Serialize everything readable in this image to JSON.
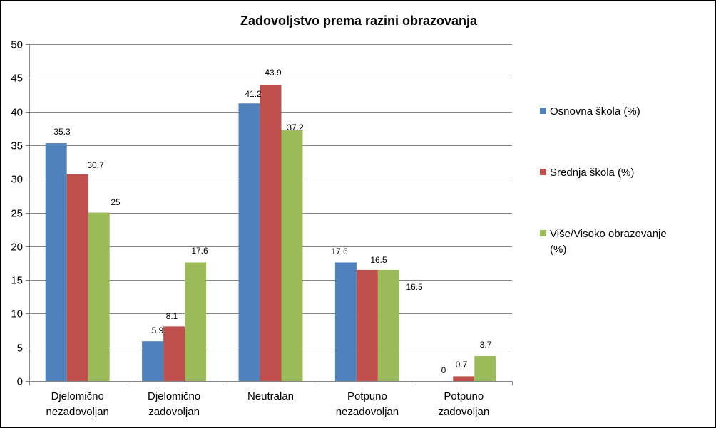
{
  "chart_data": {
    "type": "bar",
    "title": "Zadovoljstvo prema razini obrazovanja",
    "xlabel": "",
    "ylabel": "",
    "ylim": [
      0,
      50
    ],
    "yticks": [
      0,
      5,
      10,
      15,
      20,
      25,
      30,
      35,
      40,
      45,
      50
    ],
    "grid": true,
    "legend_position": "right",
    "categories": [
      [
        "Djelomično",
        "nezadovoljan"
      ],
      [
        "Djelomično",
        "zadovoljan"
      ],
      [
        "Neutralan"
      ],
      [
        "Potpuno",
        "nezadovoljan"
      ],
      [
        "Potpuno",
        "zadovoljan"
      ]
    ],
    "series": [
      {
        "name": [
          "Osnovna škola (%)"
        ],
        "color": "#4F81BD",
        "values": [
          35.3,
          5.9,
          41.2,
          17.6,
          0
        ],
        "labels": [
          "35.3",
          "5.9",
          "41.2",
          "17.6",
          "0"
        ]
      },
      {
        "name": [
          "Srednja škola (%)"
        ],
        "color": "#C0504D",
        "values": [
          30.7,
          8.1,
          43.9,
          16.5,
          0.7
        ],
        "labels": [
          "30.7",
          "8.1",
          "43.9",
          "16.5",
          "0.7"
        ]
      },
      {
        "name": [
          "Više/Visoko obrazovanje",
          "(%)"
        ],
        "color": "#9BBB59",
        "values": [
          25,
          17.6,
          37.2,
          16.5,
          3.7
        ],
        "labels": [
          "25",
          "17.6",
          "37.2",
          "16.5",
          "3.7"
        ]
      }
    ]
  }
}
